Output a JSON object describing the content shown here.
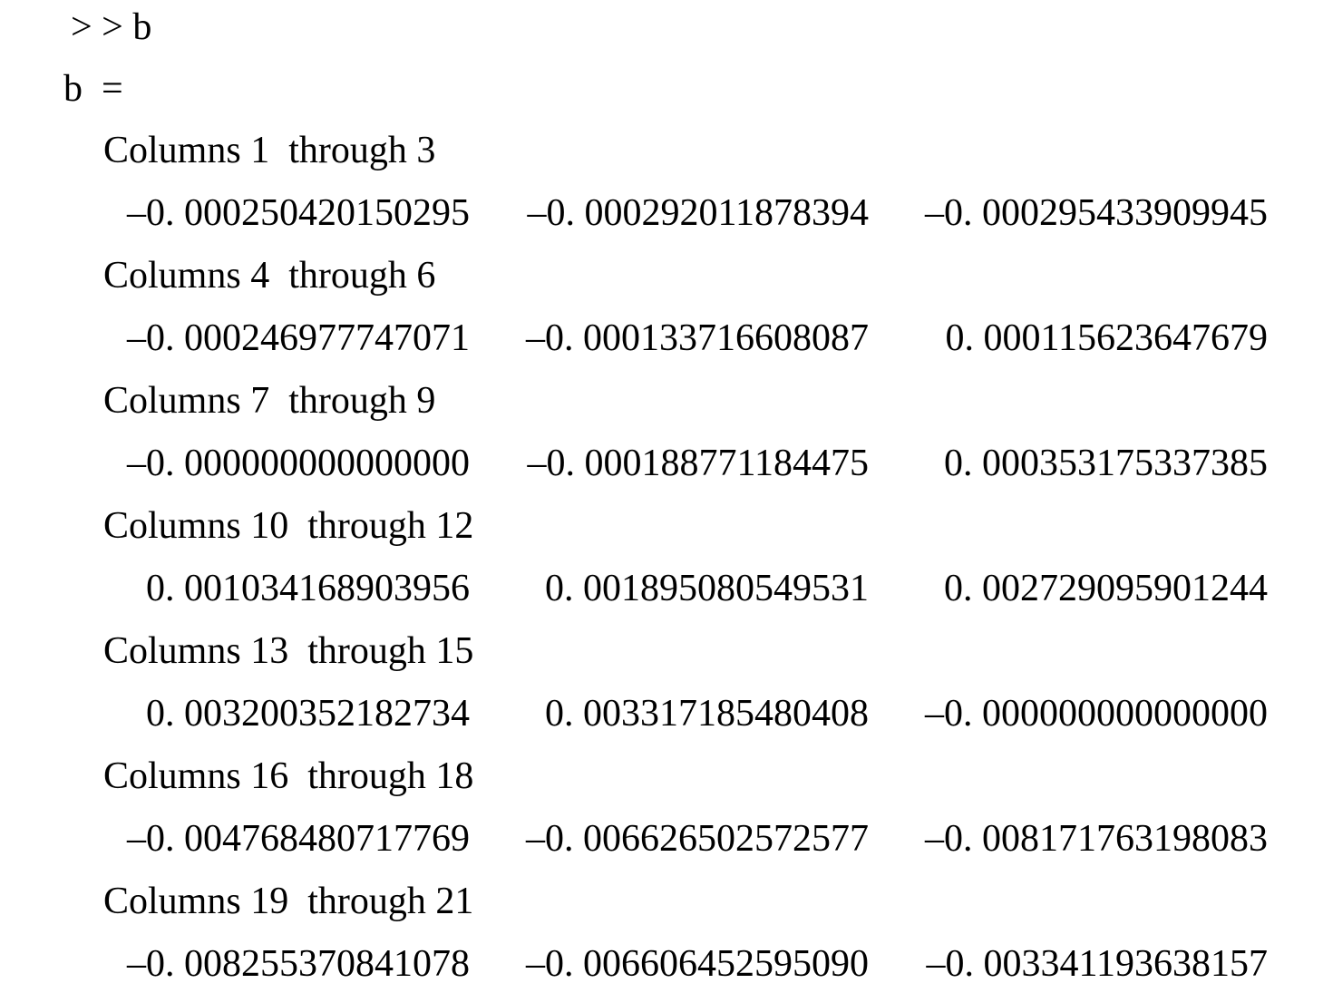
{
  "command": {
    "prompt": "> > ",
    "input": "b"
  },
  "output": {
    "variable_label": "b  =",
    "blocks": [
      {
        "header": "Columns 1  through 3",
        "values": [
          "–0. 000250420150295",
          "–0. 000292011878394",
          "–0. 000295433909945"
        ]
      },
      {
        "header": "Columns 4  through 6",
        "values": [
          "–0. 000246977747071",
          "–0. 000133716608087",
          "0. 000115623647679"
        ]
      },
      {
        "header": "Columns 7  through 9",
        "values": [
          "–0. 000000000000000",
          "–0. 000188771184475",
          "0. 000353175337385"
        ]
      },
      {
        "header": "Columns 10  through 12",
        "values": [
          "0. 001034168903956",
          "0. 001895080549531",
          "0. 002729095901244"
        ]
      },
      {
        "header": "Columns 13  through 15",
        "values": [
          "0. 003200352182734",
          "0. 003317185480408",
          "–0. 000000000000000"
        ]
      },
      {
        "header": "Columns 16  through 18",
        "values": [
          "–0. 004768480717769",
          "–0. 006626502572577",
          "–0. 008171763198083"
        ]
      },
      {
        "header": "Columns 19  through 21",
        "values": [
          "–0. 008255370841078",
          "–0. 006606452595090",
          "–0. 003341193638157"
        ]
      }
    ]
  }
}
